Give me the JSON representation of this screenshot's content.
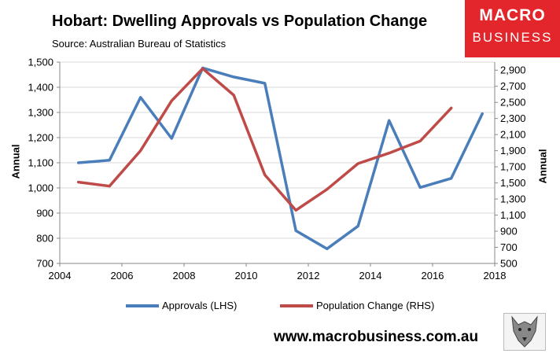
{
  "header": {
    "title": "Hobart: Dwelling Approvals vs Population Change",
    "subtitle": "Source: Australian Bureau of Statistics",
    "logo_line1": "MACRO",
    "logo_line2": "BUSINESS",
    "website": "www.macrobusiness.com.au"
  },
  "colors": {
    "approvals": "#4a7ebb",
    "population": "#be4b48",
    "brand": "#e3262b",
    "grid": "#d9d9d9"
  },
  "icons": {
    "logo_image": "wolf-head-icon"
  },
  "chart_data": {
    "type": "line",
    "title": "Hobart: Dwelling Approvals vs Population Change",
    "subtitle": "Source: Australian Bureau of Statistics",
    "xlabel": "",
    "xlim": [
      2004,
      2018
    ],
    "x_ticks": [
      "2004",
      "2006",
      "2008",
      "2010",
      "2012",
      "2014",
      "2016",
      "2018"
    ],
    "ylabel_left": "Annual",
    "ylabel_right": "Annual",
    "ylim_left": [
      700,
      1500
    ],
    "ylim_right": [
      500,
      3000
    ],
    "y_ticks_left": [
      "700",
      "800",
      "900",
      "1,000",
      "1,100",
      "1,200",
      "1,300",
      "1,400",
      "1,500"
    ],
    "y_ticks_right": [
      "500",
      "700",
      "900",
      "1,100",
      "1,300",
      "1,500",
      "1,700",
      "1,900",
      "2,100",
      "2,300",
      "2,500",
      "2,700",
      "2,900"
    ],
    "grid": true,
    "legend_position": "bottom",
    "series": [
      {
        "name": "Approvals (LHS)",
        "axis": "left",
        "x": [
          2004.6,
          2005.6,
          2006.6,
          2007.6,
          2008.6,
          2009.6,
          2010.6,
          2011.6,
          2012.6,
          2013.6,
          2014.6,
          2015.6,
          2016.6,
          2017.6
        ],
        "values": [
          1100,
          1110,
          1360,
          1197,
          1477,
          1441,
          1416,
          830,
          758,
          848,
          1268,
          1002,
          1038,
          1295
        ]
      },
      {
        "name": "Population Change (RHS)",
        "axis": "right",
        "x": [
          2004.6,
          2005.6,
          2006.6,
          2007.6,
          2008.6,
          2009.6,
          2010.6,
          2011.6,
          2012.6,
          2013.6,
          2014.6,
          2015.6,
          2016.6
        ],
        "values": [
          1510,
          1460,
          1900,
          2520,
          2920,
          2590,
          1600,
          1160,
          1420,
          1740,
          1870,
          2020,
          2430
        ]
      }
    ]
  }
}
